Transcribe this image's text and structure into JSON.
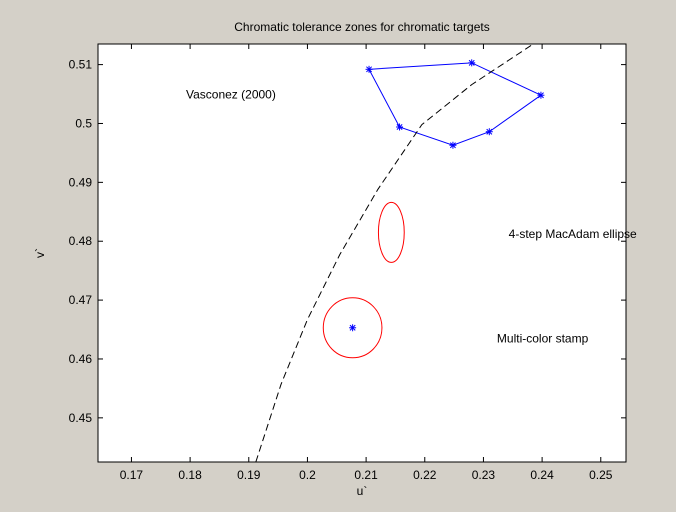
{
  "chart_data": {
    "type": "scatter",
    "title": "Chromatic tolerance zones for chromatic targets",
    "xlabel": "u`",
    "ylabel": "v`",
    "xlim": [
      0.1643,
      0.2543
    ],
    "ylim": [
      0.4425,
      0.5135
    ],
    "xticks": [
      0.17,
      0.18,
      0.19,
      0.2,
      0.21,
      0.22,
      0.23,
      0.24,
      0.25
    ],
    "xtick_labels": [
      "0.17",
      "0.18",
      "0.19",
      "0.2",
      "0.21",
      "0.22",
      "0.23",
      "0.24",
      "0.25"
    ],
    "yticks": [
      0.45,
      0.46,
      0.47,
      0.48,
      0.49,
      0.5,
      0.51
    ],
    "ytick_labels": [
      "0.45",
      "0.46",
      "0.47",
      "0.48",
      "0.49",
      "0.5",
      "0.51"
    ],
    "grid": false,
    "colors": {
      "background": "#d4d0c8",
      "axes": "#ffffff",
      "polygon": "#0000ff",
      "ellipse": "#ff0000",
      "curve": "#000000"
    },
    "series": [
      {
        "style": "polygon-with-star-markers",
        "color": "#0000ff",
        "points": [
          [
            0.2105,
            0.5092
          ],
          [
            0.228,
            0.5103
          ],
          [
            0.2398,
            0.5048
          ],
          [
            0.231,
            0.4986
          ],
          [
            0.2248,
            0.4963
          ],
          [
            0.2157,
            0.4994
          ]
        ]
      },
      {
        "style": "dashed-line",
        "color": "#000000",
        "points": [
          [
            0.1912,
            0.4425
          ],
          [
            0.1955,
            0.4557
          ],
          [
            0.2,
            0.4667
          ],
          [
            0.2055,
            0.4777
          ],
          [
            0.212,
            0.4888
          ],
          [
            0.2195,
            0.4998
          ],
          [
            0.228,
            0.5066
          ],
          [
            0.2385,
            0.5135
          ]
        ]
      },
      {
        "style": "ellipse",
        "color": "#ff0000",
        "center": [
          0.2143,
          0.4815
        ],
        "radii": [
          0.0022,
          0.0051
        ]
      },
      {
        "style": "circle-with-center-marker",
        "color": "#ff0000",
        "marker_color": "#0000ff",
        "center": [
          0.2077,
          0.4653
        ],
        "radii": [
          0.005,
          0.0051
        ]
      }
    ],
    "annotations": [
      {
        "text": "Vasconez (2000)",
        "x": 0.1793,
        "y": 0.5049
      },
      {
        "text": "4-step MacAdam ellipse",
        "x": 0.2343,
        "y": 0.4812
      },
      {
        "text": "Multi-color stamp",
        "x": 0.2323,
        "y": 0.4635
      }
    ]
  }
}
